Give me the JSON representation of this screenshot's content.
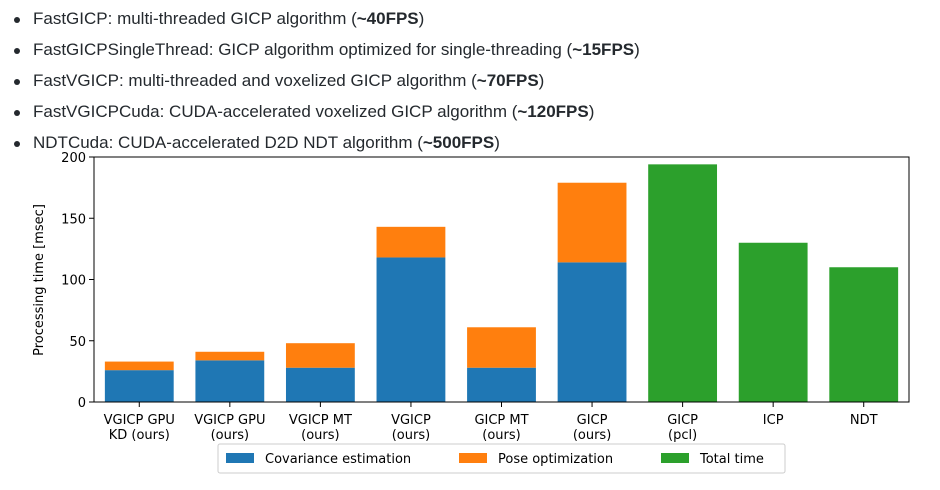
{
  "bullets": [
    {
      "name": "FastGICP",
      "desc": ": multi-threaded GICP algorithm (",
      "fps": "~40FPS",
      "close": ")"
    },
    {
      "name": "FastGICPSingleThread",
      "desc": ": GICP algorithm optimized for single-threading (",
      "fps": "~15FPS",
      "close": ")"
    },
    {
      "name": "FastVGICP",
      "desc": ": multi-threaded and voxelized GICP algorithm (",
      "fps": "~70FPS",
      "close": ")"
    },
    {
      "name": "FastVGICPCuda",
      "desc": ": CUDA-accelerated voxelized GICP algorithm (",
      "fps": "~120FPS",
      "close": ")"
    },
    {
      "name": "NDTCuda",
      "desc": ": CUDA-accelerated D2D NDT algorithm (",
      "fps": "~500FPS",
      "close": ")"
    }
  ],
  "chart_data": {
    "type": "bar",
    "stacked": true,
    "title": "",
    "xlabel": "",
    "ylabel": "Processing time [msec]",
    "ylim": [
      0,
      200
    ],
    "yticks": [
      0,
      50,
      100,
      150,
      200
    ],
    "categories": [
      [
        "VGICP GPU",
        "KD (ours)"
      ],
      [
        "VGICP GPU",
        "(ours)"
      ],
      [
        "VGICP MT",
        "(ours)"
      ],
      [
        "VGICP",
        "(ours)"
      ],
      [
        "GICP MT",
        "(ours)"
      ],
      [
        "GICP",
        "(ours)"
      ],
      [
        "GICP",
        "(pcl)"
      ],
      [
        "ICP"
      ],
      [
        "NDT"
      ]
    ],
    "series": [
      {
        "name": "Covariance estimation",
        "color": "#1f77b4",
        "values": [
          26,
          34,
          28,
          118,
          28,
          114,
          0,
          0,
          0
        ]
      },
      {
        "name": "Pose optimization",
        "color": "#ff7f0e",
        "values": [
          7,
          7,
          20,
          25,
          33,
          65,
          0,
          0,
          0
        ]
      },
      {
        "name": "Total time",
        "color": "#2ca02c",
        "values": [
          0,
          0,
          0,
          0,
          0,
          0,
          194,
          130,
          110
        ]
      }
    ],
    "legend_position": "bottom-center"
  }
}
